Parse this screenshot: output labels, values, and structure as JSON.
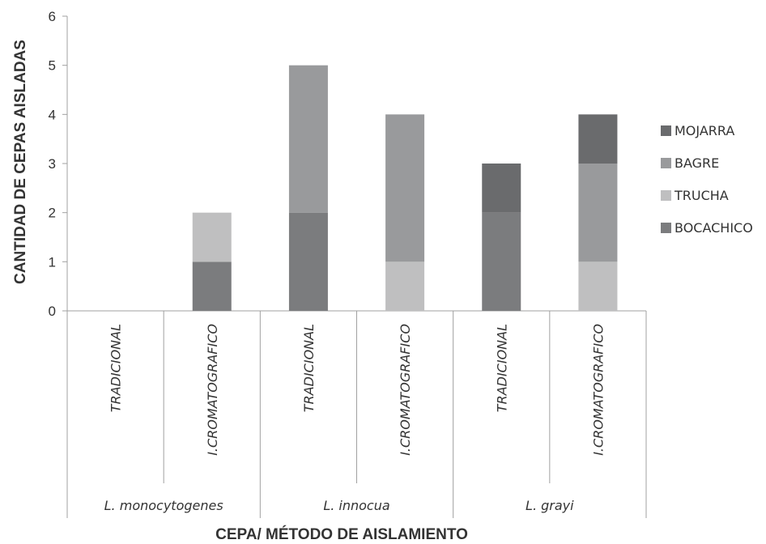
{
  "chart_data": {
    "type": "bar",
    "stacked": true,
    "ylabel": "CANTIDAD DE CEPAS AISLADAS",
    "xlabel": "CEPA/ MÉTODO DE AISLAMIENTO",
    "ylim": [
      0,
      6
    ],
    "yticks": [
      "0",
      "1",
      "2",
      "3",
      "4",
      "5",
      "6"
    ],
    "grid": false,
    "legend_position": "right",
    "groups": [
      {
        "name": "L.  monocytogenes",
        "methods": [
          "TRADICIONAL",
          "I.CROMATOGRAFICO"
        ]
      },
      {
        "name": "L.  innocua",
        "methods": [
          "TRADICIONAL",
          "I.CROMATOGRAFICO"
        ]
      },
      {
        "name": "L.  grayi",
        "methods": [
          "TRADICIONAL",
          "I.CROMATOGRAFICO"
        ]
      }
    ],
    "categories": [
      "TRADICIONAL",
      "I.CROMATOGRAFICO",
      "TRADICIONAL",
      "I.CROMATOGRAFICO",
      "TRADICIONAL",
      "I.CROMATOGRAFICO"
    ],
    "series": [
      {
        "name": "BOCACHICO",
        "color": "#7b7c7e",
        "values": [
          0,
          1,
          2,
          0,
          2,
          0
        ]
      },
      {
        "name": "TRUCHA",
        "color": "#bfbfc0",
        "values": [
          0,
          1,
          0,
          1,
          0,
          1
        ]
      },
      {
        "name": "BAGRE",
        "color": "#999a9c",
        "values": [
          0,
          0,
          3,
          3,
          0,
          2
        ]
      },
      {
        "name": "MOJARRA",
        "color": "#6a6b6d",
        "values": [
          0,
          0,
          0,
          0,
          1,
          1
        ]
      }
    ],
    "legend_order": [
      "MOJARRA",
      "BAGRE",
      "TRUCHA",
      "BOCACHICO"
    ]
  }
}
